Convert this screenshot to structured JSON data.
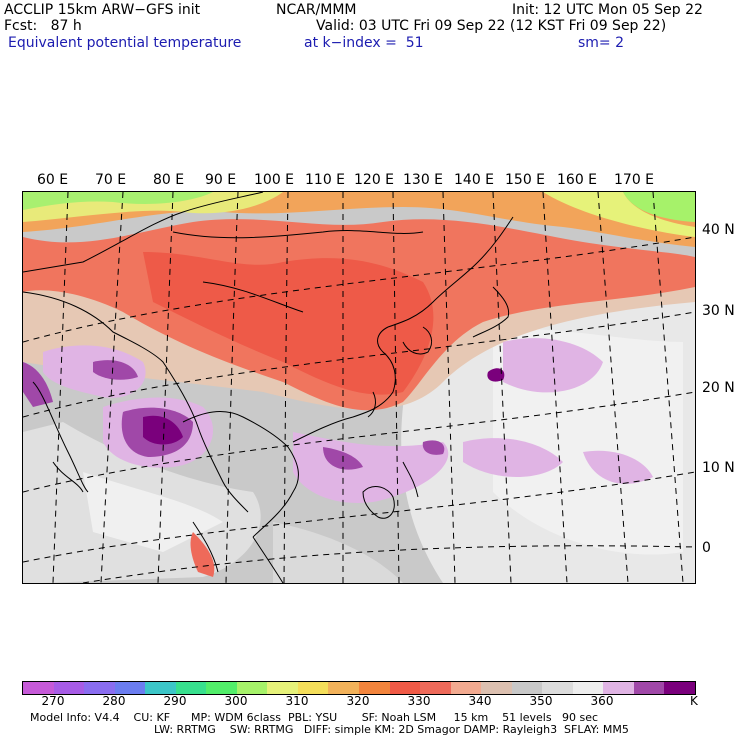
{
  "header": {
    "line1_left": "ACCLIP 15km ARW−GFS init",
    "line1_center": "NCAR/MMM",
    "line1_right": "Init: 12 UTC Mon 05 Sep 22",
    "line2_left": "Fcst:   87 h",
    "line2_right": "Valid: 03 UTC Fri 09 Sep 22 (12 KST Fri 09 Sep 22)",
    "line3_field": "Equivalent potential temperature",
    "line3_level": "at k−index =  51",
    "line3_smooth": "sm= 2"
  },
  "map": {
    "longitude_labels": [
      "60 E",
      "70 E",
      "80 E",
      "90 E",
      "100 E",
      "110 E",
      "120 E",
      "130 E",
      "140 E",
      "150 E",
      "160 E",
      "170 E"
    ],
    "latitude_labels": [
      "40 N",
      "30 N",
      "20 N",
      "10 N",
      "0"
    ]
  },
  "colorbar": {
    "colors": [
      "#c65ad8",
      "#a75ce6",
      "#8a6df0",
      "#6b7df0",
      "#3cc6c8",
      "#38e08e",
      "#52ee6a",
      "#a6f26a",
      "#e6f27a",
      "#f4de5a",
      "#f2b25a",
      "#f2843c",
      "#f05a46",
      "#ee6a5a",
      "#f2aa90",
      "#dcc0b0",
      "#c8c8c8",
      "#dcdcdc",
      "#eeeeee",
      "#e0b4e4",
      "#a048a8",
      "#7a007c"
    ],
    "tick_labels": [
      "270",
      "280",
      "290",
      "300",
      "310",
      "320",
      "330",
      "340",
      "350",
      "360"
    ],
    "unit": "K"
  },
  "footer": {
    "line1": "Model Info: V4.4    CU: KF      MP: WDM 6class  PBL: YSU       SF: Noah LSM     15 km    51 levels   90 sec",
    "line2": "LW: RRTMG    SW: RRTMG   DIFF: simple KM: 2D Smagor DAMP: Rayleigh3  SFLAY: MM5"
  }
}
